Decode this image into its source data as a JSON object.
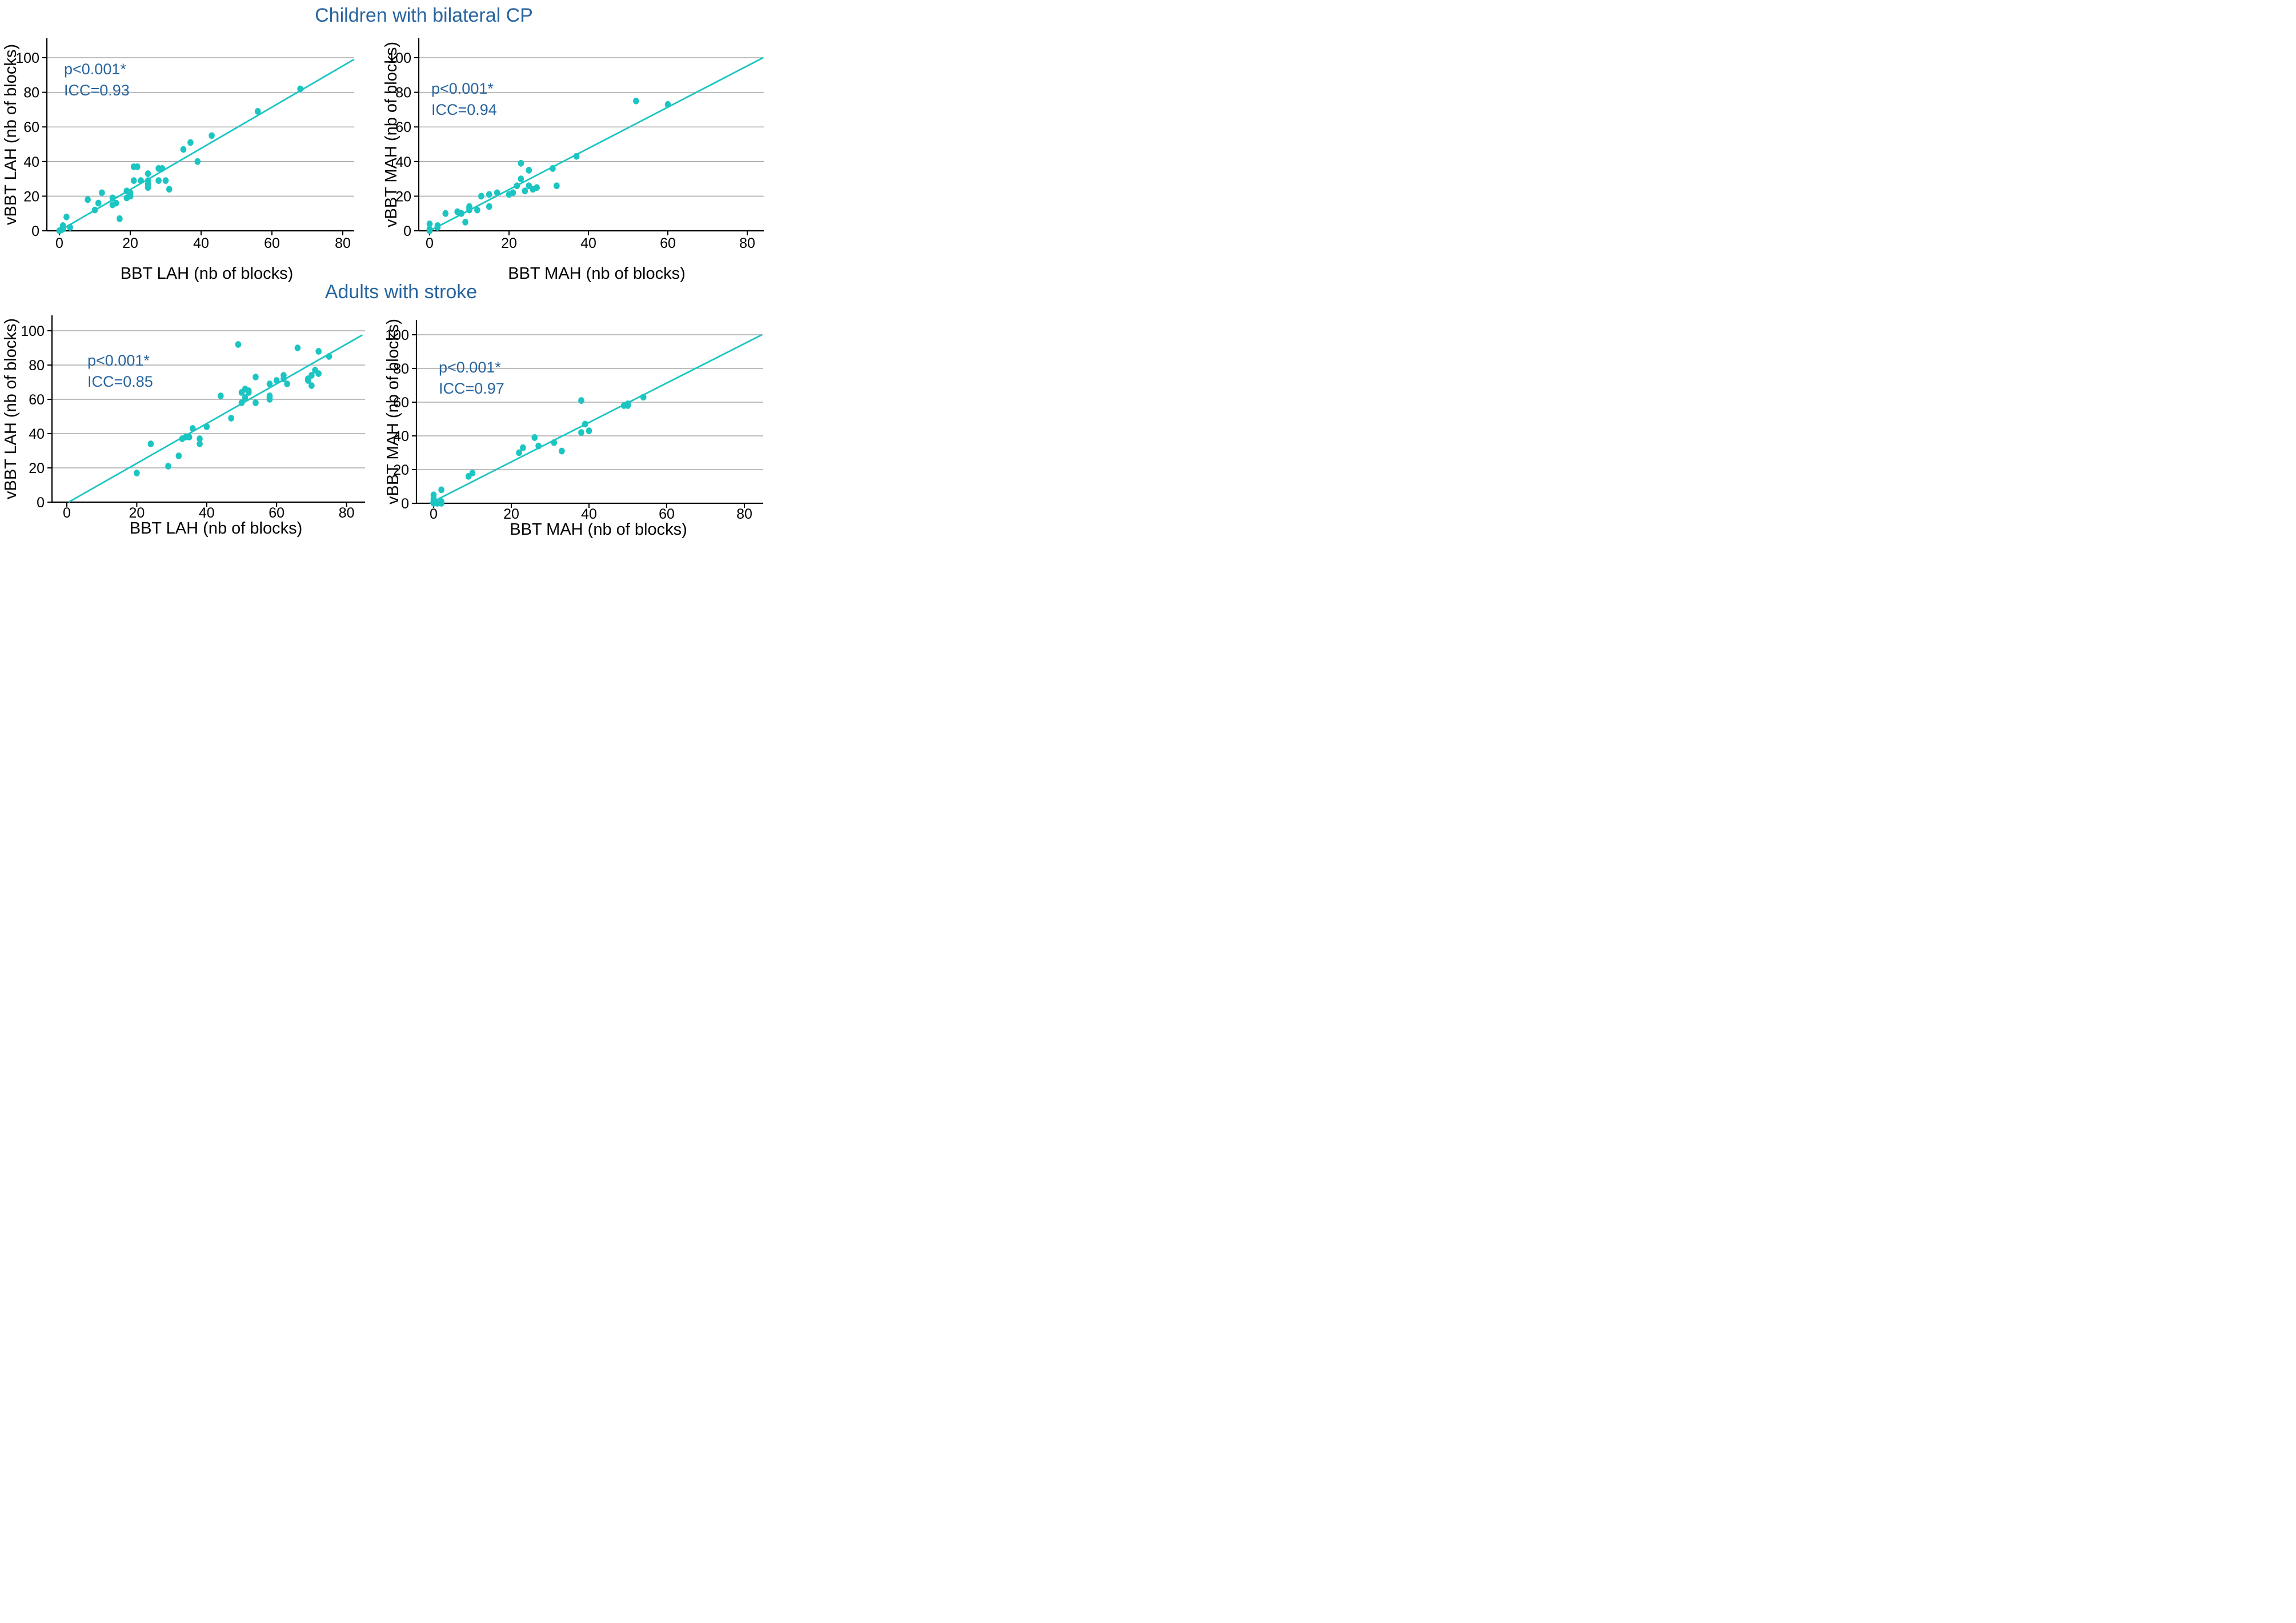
{
  "figure": {
    "group_titles": [
      "Children with bilateral CP",
      "Adults with stroke"
    ],
    "colors": {
      "accent": "#1CC5C2",
      "title_blue": "#27649F",
      "grid": "#A8A8A8",
      "axis": "#000000"
    }
  },
  "chart_data": [
    {
      "type": "scatter",
      "group": "Children with bilateral CP",
      "xlabel": "BBT LAH (nb of blocks)",
      "ylabel": "vBBT LAH (nb of blocks)",
      "annotation": {
        "p": "p<0.001*",
        "icc": "ICC=0.93"
      },
      "xticks": [
        0,
        20,
        40,
        60,
        80
      ],
      "yticks": [
        0,
        20,
        40,
        60,
        80,
        100
      ],
      "xlim": [
        -4,
        84
      ],
      "ylim": [
        0,
        111
      ],
      "grid": "horizontal-only",
      "trend_line": {
        "x1": 0,
        "y1": 0,
        "x2": 84,
        "y2": 100
      },
      "points": [
        [
          0,
          0
        ],
        [
          0.5,
          0.5
        ],
        [
          1,
          1
        ],
        [
          1,
          3
        ],
        [
          3,
          2
        ],
        [
          2,
          8
        ],
        [
          8,
          18
        ],
        [
          10,
          12
        ],
        [
          11,
          16
        ],
        [
          12,
          22
        ],
        [
          15,
          15
        ],
        [
          15,
          19
        ],
        [
          16,
          16
        ],
        [
          17,
          7
        ],
        [
          19,
          19
        ],
        [
          19,
          23
        ],
        [
          20,
          20
        ],
        [
          20,
          21
        ],
        [
          20,
          22
        ],
        [
          21,
          29
        ],
        [
          21,
          37
        ],
        [
          22,
          37
        ],
        [
          23,
          29
        ],
        [
          25,
          25
        ],
        [
          25,
          27
        ],
        [
          25,
          29
        ],
        [
          25,
          33
        ],
        [
          28,
          29
        ],
        [
          28,
          36
        ],
        [
          29,
          36
        ],
        [
          30,
          29
        ],
        [
          31,
          24
        ],
        [
          35,
          47
        ],
        [
          37,
          51
        ],
        [
          39,
          40
        ],
        [
          43,
          55
        ],
        [
          56,
          69
        ],
        [
          68,
          82
        ]
      ]
    },
    {
      "type": "scatter",
      "group": "Children with bilateral CP",
      "xlabel": "BBT MAH (nb of blocks)",
      "ylabel": "vBBT MAH (nb of blocks)",
      "annotation": {
        "p": "p<0.001*",
        "icc": "ICC=0.94"
      },
      "xticks": [
        0,
        20,
        40,
        60,
        80
      ],
      "yticks": [
        0,
        20,
        40,
        60,
        80,
        100
      ],
      "xlim": [
        -4,
        84
      ],
      "ylim": [
        0,
        111
      ],
      "grid": "horizontal-only",
      "trend_line": {
        "x1": 0,
        "y1": 0,
        "x2": 84,
        "y2": 100
      },
      "points": [
        [
          0,
          0
        ],
        [
          0,
          1
        ],
        [
          0,
          4
        ],
        [
          2,
          2
        ],
        [
          2,
          3
        ],
        [
          4,
          10
        ],
        [
          7,
          11
        ],
        [
          8,
          10
        ],
        [
          9,
          5
        ],
        [
          10,
          12
        ],
        [
          10,
          13
        ],
        [
          10,
          14
        ],
        [
          12,
          12
        ],
        [
          13,
          20
        ],
        [
          15,
          14
        ],
        [
          15,
          21
        ],
        [
          17,
          22
        ],
        [
          20,
          21
        ],
        [
          21,
          22
        ],
        [
          22,
          26
        ],
        [
          23,
          30
        ],
        [
          23,
          39
        ],
        [
          24,
          23
        ],
        [
          25,
          26
        ],
        [
          25,
          35
        ],
        [
          26,
          24
        ],
        [
          27,
          25
        ],
        [
          31,
          36
        ],
        [
          32,
          26
        ],
        [
          37,
          43
        ],
        [
          52,
          75
        ],
        [
          60,
          73
        ]
      ]
    },
    {
      "type": "scatter",
      "group": "Adults with stroke",
      "xlabel": "BBT LAH (nb of blocks)",
      "ylabel": "vBBT LAH (nb of blocks)",
      "annotation": {
        "p": "p<0.001*",
        "icc": "ICC=0.85"
      },
      "xticks": [
        0,
        20,
        40,
        60,
        80
      ],
      "yticks": [
        0,
        20,
        40,
        60,
        80,
        100
      ],
      "xlim": [
        -4,
        85
      ],
      "ylim": [
        0,
        109
      ],
      "grid": "horizontal-only",
      "trend_line": {
        "x1": 0.5,
        "y1": 0,
        "x2": 84.5,
        "y2": 97.5
      },
      "points": [
        [
          20,
          17
        ],
        [
          24,
          34
        ],
        [
          29,
          21
        ],
        [
          32,
          27
        ],
        [
          33,
          37
        ],
        [
          34,
          38
        ],
        [
          35,
          38
        ],
        [
          36,
          43
        ],
        [
          38,
          34
        ],
        [
          38,
          37
        ],
        [
          40,
          44
        ],
        [
          44,
          62
        ],
        [
          47,
          49
        ],
        [
          49,
          92
        ],
        [
          50,
          58
        ],
        [
          50,
          64
        ],
        [
          51,
          61
        ],
        [
          51,
          66
        ],
        [
          52,
          64
        ],
        [
          52,
          65
        ],
        [
          54,
          58
        ],
        [
          54,
          73
        ],
        [
          58,
          60
        ],
        [
          58,
          61
        ],
        [
          58,
          62
        ],
        [
          58,
          69
        ],
        [
          60,
          71
        ],
        [
          62,
          72
        ],
        [
          62,
          74
        ],
        [
          63,
          69
        ],
        [
          66,
          90
        ],
        [
          69,
          71
        ],
        [
          69,
          72
        ],
        [
          70,
          68
        ],
        [
          70,
          74
        ],
        [
          71,
          77
        ],
        [
          72,
          75
        ],
        [
          72,
          88
        ],
        [
          75,
          85
        ]
      ]
    },
    {
      "type": "scatter",
      "group": "Adults with stroke",
      "xlabel": "BBT MAH (nb of blocks)",
      "ylabel": "vBBT MAH (nb of blocks)",
      "annotation": {
        "p": "p<0.001*",
        "icc": "ICC=0.97"
      },
      "xticks": [
        0,
        20,
        40,
        60,
        80
      ],
      "yticks": [
        0,
        20,
        40,
        60,
        80,
        100
      ],
      "xlim": [
        -4,
        85
      ],
      "ylim": [
        0,
        109
      ],
      "grid": "horizontal-only",
      "trend_line": {
        "x1": -1,
        "y1": 0,
        "x2": 84.5,
        "y2": 100
      },
      "points": [
        [
          0,
          0
        ],
        [
          0,
          0.5
        ],
        [
          0,
          1
        ],
        [
          0,
          2
        ],
        [
          0,
          3
        ],
        [
          0,
          5
        ],
        [
          1,
          0
        ],
        [
          2,
          0
        ],
        [
          2,
          1
        ],
        [
          2,
          8
        ],
        [
          9,
          16
        ],
        [
          10,
          18
        ],
        [
          22,
          30
        ],
        [
          23,
          33
        ],
        [
          26,
          39
        ],
        [
          27,
          34
        ],
        [
          31,
          36
        ],
        [
          33,
          31
        ],
        [
          38,
          42
        ],
        [
          38,
          61
        ],
        [
          39,
          47
        ],
        [
          40,
          43
        ],
        [
          49,
          58
        ],
        [
          50,
          58
        ],
        [
          50,
          59
        ],
        [
          54,
          63
        ]
      ]
    }
  ]
}
